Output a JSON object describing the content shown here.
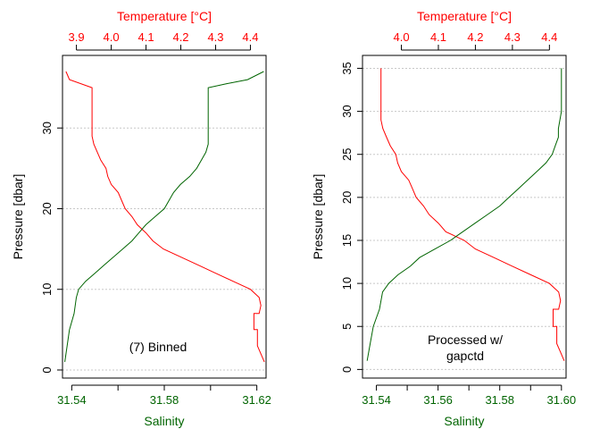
{
  "colors": {
    "temperature": "#ff0000",
    "salinity": "#006400",
    "axis": "#000000",
    "grid": "#c8c8c8"
  },
  "chart_data": [
    {
      "type": "line",
      "annotation": [
        "(7) Binned"
      ],
      "ylabel": "Pressure [dbar]",
      "ylim": [
        39,
        -1
      ],
      "yticks": [
        0,
        10,
        20,
        30
      ],
      "grid_y": [
        0,
        10,
        20,
        30
      ],
      "xlabel_top": "Temperature [°C]",
      "xlim_top": [
        3.86,
        4.445
      ],
      "xticks_top": [
        3.9,
        4.0,
        4.1,
        4.2,
        4.3,
        4.4
      ],
      "xticklabels_top": [
        "3.9",
        "4.0",
        "4.1",
        "4.2",
        "4.3",
        "4.4"
      ],
      "xlabel_bottom": "Salinity",
      "xlim_bottom": [
        31.536,
        31.624
      ],
      "xticks_bottom": [
        31.54,
        31.56,
        31.58,
        31.6,
        31.62
      ],
      "xticklabels_bottom": [
        "31.54",
        "",
        "31.58",
        "",
        "31.62"
      ],
      "series": [
        {
          "axis": "top",
          "points": [
            [
              4.44,
              1
            ],
            [
              4.43,
              2
            ],
            [
              4.42,
              3
            ],
            [
              4.42,
              5
            ],
            [
              4.41,
              5
            ],
            [
              4.41,
              7
            ],
            [
              4.425,
              7
            ],
            [
              4.43,
              8
            ],
            [
              4.425,
              9
            ],
            [
              4.4,
              10
            ],
            [
              4.35,
              11
            ],
            [
              4.3,
              12
            ],
            [
              4.25,
              13
            ],
            [
              4.2,
              14
            ],
            [
              4.15,
              15
            ],
            [
              4.12,
              16
            ],
            [
              4.1,
              17
            ],
            [
              4.075,
              18
            ],
            [
              4.06,
              19
            ],
            [
              4.04,
              20
            ],
            [
              4.03,
              21
            ],
            [
              4.02,
              22
            ],
            [
              4.0,
              23
            ],
            [
              3.99,
              24
            ],
            [
              3.985,
              25
            ],
            [
              3.97,
              26
            ],
            [
              3.96,
              27
            ],
            [
              3.95,
              28
            ],
            [
              3.945,
              29
            ],
            [
              3.945,
              33
            ],
            [
              3.945,
              35
            ],
            [
              3.88,
              36
            ],
            [
              3.87,
              37
            ]
          ]
        },
        {
          "axis": "bottom",
          "points": [
            [
              31.537,
              1
            ],
            [
              31.538,
              3
            ],
            [
              31.539,
              5
            ],
            [
              31.541,
              7
            ],
            [
              31.542,
              9
            ],
            [
              31.543,
              10
            ],
            [
              31.546,
              11
            ],
            [
              31.55,
              12
            ],
            [
              31.554,
              13
            ],
            [
              31.558,
              14
            ],
            [
              31.562,
              15
            ],
            [
              31.566,
              16
            ],
            [
              31.569,
              17
            ],
            [
              31.572,
              18
            ],
            [
              31.576,
              19
            ],
            [
              31.58,
              20
            ],
            [
              31.582,
              21
            ],
            [
              31.584,
              22
            ],
            [
              31.587,
              23
            ],
            [
              31.591,
              24
            ],
            [
              31.594,
              25
            ],
            [
              31.596,
              26
            ],
            [
              31.598,
              27
            ],
            [
              31.599,
              28
            ],
            [
              31.599,
              30
            ],
            [
              31.599,
              33
            ],
            [
              31.599,
              35
            ],
            [
              31.607,
              35.5
            ],
            [
              31.616,
              36
            ],
            [
              31.623,
              37
            ]
          ]
        }
      ]
    },
    {
      "type": "line",
      "annotation": [
        "Processed w/",
        "gapctd"
      ],
      "ylabel": "Pressure [dbar]",
      "ylim": [
        36.5,
        -1
      ],
      "yticks": [
        0,
        5,
        10,
        15,
        20,
        25,
        30,
        35
      ],
      "grid_y": [
        0,
        5,
        10,
        15,
        20,
        25,
        30,
        35
      ],
      "xlabel_top": "Temperature [°C]",
      "xlim_top": [
        3.895,
        4.445
      ],
      "xticks_top": [
        4.0,
        4.1,
        4.2,
        4.3,
        4.4
      ],
      "xticklabels_top": [
        "4.0",
        "4.1",
        "4.2",
        "4.3",
        "4.4"
      ],
      "xlabel_bottom": "Salinity",
      "xlim_bottom": [
        31.5355,
        31.6015
      ],
      "xticks_bottom": [
        31.54,
        31.55,
        31.56,
        31.57,
        31.58,
        31.59,
        31.6
      ],
      "xticklabels_bottom": [
        "31.54",
        "",
        "31.56",
        "",
        "31.58",
        "",
        "31.60"
      ],
      "series": [
        {
          "axis": "top",
          "points": [
            [
              4.44,
              1
            ],
            [
              4.43,
              2
            ],
            [
              4.42,
              3
            ],
            [
              4.42,
              5
            ],
            [
              4.41,
              5
            ],
            [
              4.41,
              7
            ],
            [
              4.425,
              7
            ],
            [
              4.43,
              8
            ],
            [
              4.425,
              9
            ],
            [
              4.4,
              10
            ],
            [
              4.35,
              11
            ],
            [
              4.3,
              12
            ],
            [
              4.25,
              13
            ],
            [
              4.2,
              14
            ],
            [
              4.17,
              15
            ],
            [
              4.12,
              16
            ],
            [
              4.1,
              17
            ],
            [
              4.075,
              18
            ],
            [
              4.06,
              19
            ],
            [
              4.04,
              20
            ],
            [
              4.03,
              21
            ],
            [
              4.02,
              22
            ],
            [
              4.0,
              23
            ],
            [
              3.99,
              24
            ],
            [
              3.985,
              25
            ],
            [
              3.97,
              26
            ],
            [
              3.96,
              27
            ],
            [
              3.95,
              28
            ],
            [
              3.945,
              29
            ],
            [
              3.945,
              33
            ],
            [
              3.945,
              35
            ]
          ]
        },
        {
          "axis": "bottom",
          "points": [
            [
              31.537,
              1
            ],
            [
              31.538,
              3
            ],
            [
              31.539,
              5
            ],
            [
              31.541,
              7
            ],
            [
              31.542,
              9
            ],
            [
              31.544,
              10
            ],
            [
              31.547,
              11
            ],
            [
              31.551,
              12
            ],
            [
              31.554,
              13
            ],
            [
              31.559,
              14
            ],
            [
              31.564,
              15
            ],
            [
              31.568,
              16
            ],
            [
              31.572,
              17
            ],
            [
              31.576,
              18
            ],
            [
              31.58,
              19
            ],
            [
              31.583,
              20
            ],
            [
              31.586,
              21
            ],
            [
              31.589,
              22
            ],
            [
              31.592,
              23
            ],
            [
              31.595,
              24
            ],
            [
              31.597,
              25
            ],
            [
              31.598,
              26
            ],
            [
              31.599,
              27
            ],
            [
              31.599,
              28
            ],
            [
              31.6,
              30
            ],
            [
              31.6,
              33
            ],
            [
              31.6,
              35
            ]
          ]
        }
      ]
    }
  ]
}
